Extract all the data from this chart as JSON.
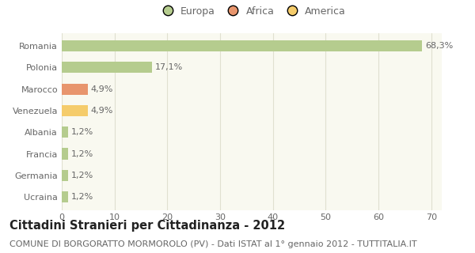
{
  "categories": [
    "Romania",
    "Polonia",
    "Marocco",
    "Venezuela",
    "Albania",
    "Francia",
    "Germania",
    "Ucraina"
  ],
  "values": [
    68.3,
    17.1,
    4.9,
    4.9,
    1.2,
    1.2,
    1.2,
    1.2
  ],
  "labels": [
    "68,3%",
    "17,1%",
    "4,9%",
    "4,9%",
    "1,2%",
    "1,2%",
    "1,2%",
    "1,2%"
  ],
  "colors": [
    "#b5cc8e",
    "#b5cc8e",
    "#e8956d",
    "#f5cc6b",
    "#b5cc8e",
    "#b5cc8e",
    "#b5cc8e",
    "#b5cc8e"
  ],
  "legend": [
    {
      "label": "Europa",
      "color": "#b5cc8e"
    },
    {
      "label": "Africa",
      "color": "#e8956d"
    },
    {
      "label": "America",
      "color": "#f5cc6b"
    }
  ],
  "xlim": [
    0,
    72
  ],
  "xticks": [
    0,
    10,
    20,
    30,
    40,
    50,
    60,
    70
  ],
  "title": "Cittadini Stranieri per Cittadinanza - 2012",
  "subtitle": "COMUNE DI BORGORATTO MORMOROLO (PV) - Dati ISTAT al 1° gennaio 2012 - TUTTITALIA.IT",
  "background_color": "#ffffff",
  "plot_bg_color": "#f9f9f0",
  "grid_color": "#e0e0d0",
  "bar_height": 0.52,
  "title_fontsize": 10.5,
  "subtitle_fontsize": 8,
  "label_fontsize": 8,
  "tick_fontsize": 8,
  "legend_fontsize": 9
}
